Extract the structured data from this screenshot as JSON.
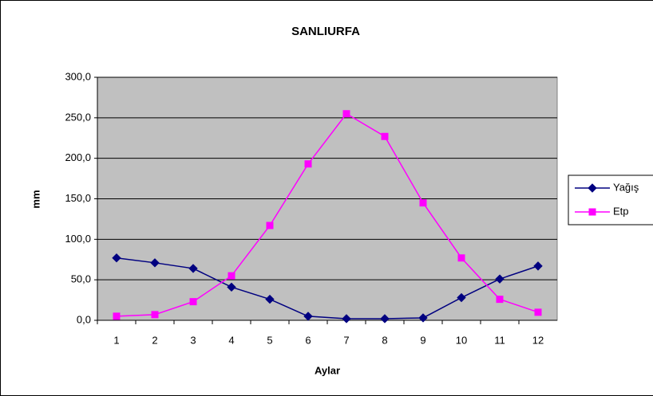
{
  "chart_data": {
    "type": "line",
    "title": "SANLIURFA",
    "xlabel": "Aylar",
    "ylabel": "mm",
    "categories": [
      "1",
      "2",
      "3",
      "4",
      "5",
      "6",
      "7",
      "8",
      "9",
      "10",
      "11",
      "12"
    ],
    "series": [
      {
        "name": "Yağış",
        "color": "#000080",
        "marker": "diamond",
        "values": [
          77,
          71,
          64,
          41,
          26,
          5,
          2,
          2,
          3,
          28,
          51,
          67
        ]
      },
      {
        "name": "Etp",
        "color": "#ff00ff",
        "marker": "square",
        "values": [
          5,
          7,
          23,
          55,
          117,
          193,
          255,
          227,
          145,
          77,
          26,
          10
        ]
      }
    ],
    "ylim": [
      0,
      300
    ],
    "yticks": [
      {
        "value": 0,
        "label": "0,0"
      },
      {
        "value": 50,
        "label": "50,0"
      },
      {
        "value": 100,
        "label": "100,0"
      },
      {
        "value": 150,
        "label": "150,0"
      },
      {
        "value": 200,
        "label": "200,0"
      },
      {
        "value": 250,
        "label": "250,0"
      },
      {
        "value": 300,
        "label": "300,0"
      }
    ],
    "grid": true,
    "legend": "right"
  }
}
